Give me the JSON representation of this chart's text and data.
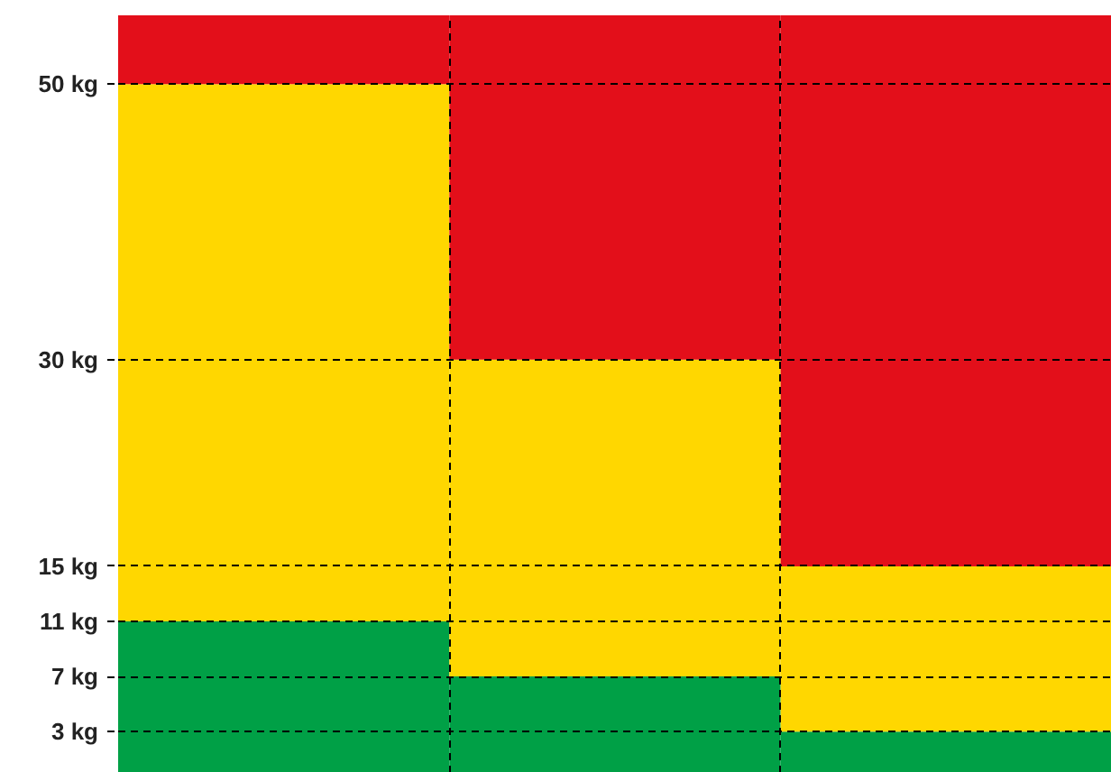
{
  "chart_data": {
    "type": "bar",
    "stacked": true,
    "categories": [
      null,
      null,
      null
    ],
    "series": [
      {
        "color": "#00a046",
        "values": [
          11,
          7,
          3
        ]
      },
      {
        "color": "#ffd700",
        "values": [
          39,
          23,
          12
        ]
      },
      {
        "color": "#e30f1a",
        "values": [
          5,
          25,
          40
        ]
      }
    ],
    "ylim": [
      0,
      55
    ],
    "yticks": [
      {
        "value": 3,
        "label": "3 kg"
      },
      {
        "value": 7,
        "label": "7 kg"
      },
      {
        "value": 11,
        "label": "11 kg"
      },
      {
        "value": 15,
        "label": "15 kg"
      },
      {
        "value": 30,
        "label": "30 kg"
      },
      {
        "value": 50,
        "label": "50 kg"
      }
    ],
    "grid": true,
    "tick_labels": "y"
  }
}
